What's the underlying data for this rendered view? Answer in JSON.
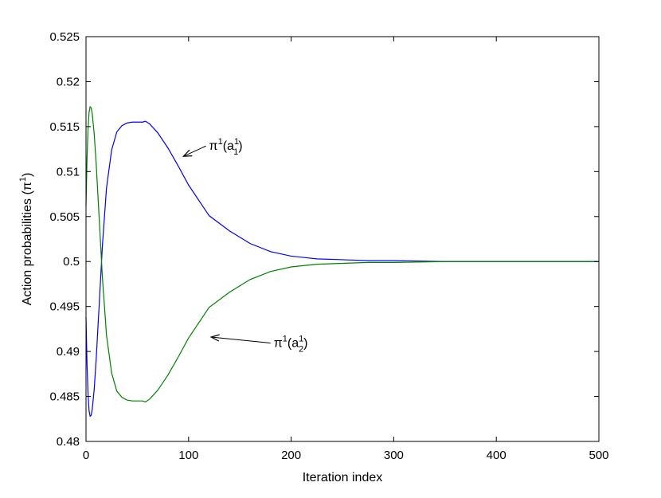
{
  "chart_data": {
    "type": "line",
    "title": "",
    "xlabel": "Iteration index",
    "ylabel_prefix": "Action probabilities (",
    "ylabel_symbol": "π",
    "ylabel_sup": "1",
    "ylabel_suffix": ")",
    "xlim": [
      0,
      500
    ],
    "ylim": [
      0.48,
      0.525
    ],
    "xticks": [
      0,
      100,
      200,
      300,
      400,
      500
    ],
    "xtick_labels": [
      "0",
      "100",
      "200",
      "300",
      "400",
      "500"
    ],
    "yticks": [
      0.48,
      0.485,
      0.49,
      0.495,
      0.5,
      0.505,
      0.51,
      0.515,
      0.52,
      0.525
    ],
    "ytick_labels": [
      "0.48",
      "0.485",
      "0.49",
      "0.495",
      "0.5",
      "0.505",
      "0.51",
      "0.515",
      "0.52",
      "0.525"
    ],
    "grid": false,
    "series": [
      {
        "color": "#0000ff",
        "x": [
          0,
          1,
          2,
          3,
          4,
          5,
          6,
          8,
          10,
          13,
          16,
          20,
          25,
          30,
          35,
          40,
          45,
          50,
          55,
          58,
          62,
          70,
          80,
          90,
          100,
          120,
          140,
          160,
          180,
          200,
          225,
          250,
          275,
          300,
          350,
          400,
          450,
          500
        ],
        "y": [
          0.4938,
          0.4885,
          0.4852,
          0.4834,
          0.4828,
          0.4829,
          0.4835,
          0.4858,
          0.4893,
          0.4955,
          0.5018,
          0.5082,
          0.5124,
          0.5144,
          0.5151,
          0.5154,
          0.5155,
          0.5155,
          0.5155,
          0.5156,
          0.5153,
          0.5143,
          0.5126,
          0.5106,
          0.5085,
          0.5051,
          0.5034,
          0.502,
          0.5011,
          0.5006,
          0.5003,
          0.5002,
          0.5001,
          0.5001,
          0.5,
          0.5,
          0.5,
          0.5
        ]
      },
      {
        "color": "#008000",
        "x": [
          0,
          1,
          2,
          3,
          4,
          5,
          6,
          8,
          10,
          13,
          16,
          20,
          25,
          30,
          35,
          40,
          45,
          50,
          55,
          58,
          62,
          70,
          80,
          90,
          100,
          120,
          140,
          160,
          180,
          200,
          225,
          250,
          275,
          300,
          350,
          400,
          450,
          500
        ],
        "y": [
          0.5062,
          0.5115,
          0.5148,
          0.5166,
          0.5172,
          0.5171,
          0.5165,
          0.5142,
          0.5107,
          0.5045,
          0.4982,
          0.4918,
          0.4876,
          0.4856,
          0.4849,
          0.4846,
          0.4845,
          0.4845,
          0.4845,
          0.4844,
          0.4847,
          0.4857,
          0.4874,
          0.4894,
          0.4915,
          0.4949,
          0.4966,
          0.498,
          0.4989,
          0.4994,
          0.4997,
          0.4998,
          0.4999,
          0.4999,
          0.5,
          0.5,
          0.5,
          0.5
        ]
      }
    ],
    "annotations": [
      {
        "symbol": "π",
        "sup": "1",
        "open": "(a",
        "sub": "1",
        "subsup": "1",
        "close": ")",
        "text_x": 120,
        "text_y": 0.5124,
        "arrow_to_x": 95,
        "arrow_to_y": 0.5117
      },
      {
        "symbol": "π",
        "sup": "1",
        "open": "(a",
        "sub": "2",
        "subsup": "1",
        "close": ")",
        "text_x": 183,
        "text_y": 0.4905,
        "arrow_to_x": 122,
        "arrow_to_y": 0.4916
      }
    ]
  }
}
